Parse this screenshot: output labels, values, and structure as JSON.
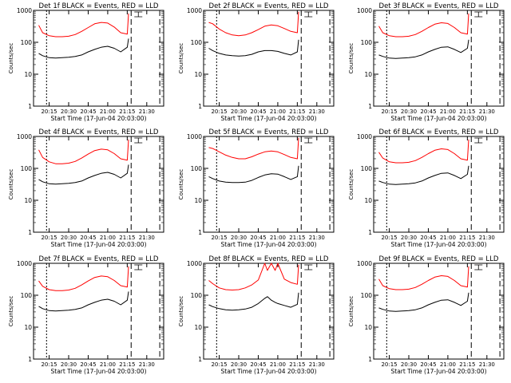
{
  "figure": {
    "ylabel": "Counts/sec",
    "xlabel": "Start Time (17-Jun-04 20:03:00)",
    "y_tick_labels": [
      "1000",
      "100",
      "10",
      "1"
    ],
    "x_tick_labels": [
      "20:15",
      "20:30",
      "20:45",
      "21:00",
      "21:15",
      "21:30"
    ],
    "colors": {
      "events": "#000000",
      "lld": "#ff0000"
    }
  },
  "chart_data": [
    {
      "type": "line",
      "title": "Det 1f BLACK = Events, RED = LLD",
      "yscale": "log",
      "ylim": [
        1,
        1000
      ],
      "xlim": [
        "20:03",
        "21:43"
      ],
      "series": [
        {
          "color": "#000000",
          "x": [
            "20:07",
            "20:10",
            "20:15",
            "20:20",
            "20:25",
            "20:30",
            "20:35",
            "20:40",
            "20:45",
            "20:50",
            "20:55",
            "21:00",
            "21:05",
            "21:10",
            "21:15",
            "21:16"
          ],
          "y": [
            45,
            38,
            33,
            32,
            33,
            34,
            36,
            40,
            50,
            60,
            70,
            75,
            65,
            50,
            70,
            130
          ]
        },
        {
          "color": "#ff0000",
          "x": [
            "20:07",
            "20:10",
            "20:15",
            "20:20",
            "20:25",
            "20:30",
            "20:35",
            "20:40",
            "20:45",
            "20:50",
            "20:55",
            "21:00",
            "21:05",
            "21:10",
            "21:15",
            "21:16"
          ],
          "y": [
            340,
            200,
            160,
            150,
            150,
            155,
            175,
            220,
            290,
            380,
            420,
            400,
            300,
            200,
            180,
            800
          ]
        }
      ]
    },
    {
      "type": "line",
      "title": "Det 2f BLACK = Events, RED = LLD",
      "yscale": "log",
      "ylim": [
        1,
        1000
      ],
      "xlim": [
        "20:03",
        "21:43"
      ],
      "series": [
        {
          "color": "#000000",
          "x": [
            "20:07",
            "20:10",
            "20:15",
            "20:20",
            "20:25",
            "20:30",
            "20:35",
            "20:40",
            "20:45",
            "20:50",
            "20:55",
            "21:00",
            "21:05",
            "21:10",
            "21:15",
            "21:16"
          ],
          "y": [
            65,
            55,
            45,
            40,
            38,
            37,
            38,
            42,
            50,
            55,
            55,
            52,
            45,
            40,
            50,
            120
          ]
        },
        {
          "color": "#ff0000",
          "x": [
            "20:07",
            "20:10",
            "20:15",
            "20:20",
            "20:25",
            "20:30",
            "20:35",
            "20:40",
            "20:45",
            "20:50",
            "20:55",
            "21:00",
            "21:05",
            "21:10",
            "21:15",
            "21:16"
          ],
          "y": [
            420,
            380,
            260,
            200,
            170,
            160,
            170,
            200,
            250,
            320,
            350,
            330,
            270,
            220,
            200,
            900
          ]
        }
      ]
    },
    {
      "type": "line",
      "title": "Det 3f BLACK = Events, RED = LLD",
      "yscale": "log",
      "ylim": [
        1,
        1000
      ],
      "xlim": [
        "20:03",
        "21:43"
      ],
      "series": [
        {
          "color": "#000000",
          "x": [
            "20:07",
            "20:10",
            "20:15",
            "20:20",
            "20:25",
            "20:30",
            "20:35",
            "20:40",
            "20:45",
            "20:50",
            "20:55",
            "21:00",
            "21:05",
            "21:10",
            "21:15",
            "21:16"
          ],
          "y": [
            40,
            36,
            32,
            31,
            32,
            33,
            35,
            40,
            50,
            60,
            70,
            72,
            60,
            48,
            65,
            120
          ]
        },
        {
          "color": "#ff0000",
          "x": [
            "20:07",
            "20:10",
            "20:15",
            "20:20",
            "20:25",
            "20:30",
            "20:35",
            "20:40",
            "20:45",
            "20:50",
            "20:55",
            "21:00",
            "21:05",
            "21:10",
            "21:15",
            "21:16"
          ],
          "y": [
            320,
            200,
            160,
            150,
            150,
            155,
            175,
            220,
            290,
            370,
            410,
            390,
            290,
            200,
            180,
            800
          ]
        }
      ]
    },
    {
      "type": "line",
      "title": "Det 4f BLACK = Events, RED = LLD",
      "yscale": "log",
      "ylim": [
        1,
        1000
      ],
      "xlim": [
        "20:03",
        "21:43"
      ],
      "series": [
        {
          "color": "#000000",
          "x": [
            "20:07",
            "20:10",
            "20:15",
            "20:20",
            "20:25",
            "20:30",
            "20:35",
            "20:40",
            "20:45",
            "20:50",
            "20:55",
            "21:00",
            "21:05",
            "21:10",
            "21:15",
            "21:16"
          ],
          "y": [
            45,
            38,
            33,
            32,
            33,
            34,
            36,
            40,
            50,
            60,
            70,
            75,
            65,
            50,
            70,
            130
          ]
        },
        {
          "color": "#ff0000",
          "x": [
            "20:07",
            "20:10",
            "20:15",
            "20:20",
            "20:25",
            "20:30",
            "20:35",
            "20:40",
            "20:45",
            "20:50",
            "20:55",
            "21:00",
            "21:05",
            "21:10",
            "21:15",
            "21:16"
          ],
          "y": [
            380,
            220,
            160,
            140,
            140,
            145,
            165,
            210,
            280,
            360,
            400,
            380,
            290,
            200,
            180,
            800
          ]
        }
      ]
    },
    {
      "type": "line",
      "title": "Det 5f BLACK = Events, RED = LLD",
      "yscale": "log",
      "ylim": [
        1,
        1000
      ],
      "xlim": [
        "20:03",
        "21:43"
      ],
      "series": [
        {
          "color": "#000000",
          "x": [
            "20:07",
            "20:10",
            "20:15",
            "20:20",
            "20:25",
            "20:30",
            "20:35",
            "20:40",
            "20:45",
            "20:50",
            "20:55",
            "21:00",
            "21:05",
            "21:10",
            "21:15",
            "21:16"
          ],
          "y": [
            55,
            48,
            40,
            37,
            36,
            36,
            37,
            42,
            52,
            62,
            68,
            66,
            55,
            45,
            55,
            120
          ]
        },
        {
          "color": "#ff0000",
          "x": [
            "20:07",
            "20:10",
            "20:15",
            "20:20",
            "20:25",
            "20:30",
            "20:35",
            "20:40",
            "20:45",
            "20:50",
            "20:55",
            "21:00",
            "21:05",
            "21:10",
            "21:15",
            "21:16"
          ],
          "y": [
            450,
            420,
            330,
            260,
            220,
            200,
            200,
            230,
            280,
            330,
            350,
            330,
            270,
            220,
            200,
            900
          ]
        }
      ]
    },
    {
      "type": "line",
      "title": "Det 6f BLACK = Events, RED = LLD",
      "yscale": "log",
      "ylim": [
        1,
        1000
      ],
      "xlim": [
        "20:03",
        "21:43"
      ],
      "series": [
        {
          "color": "#000000",
          "x": [
            "20:07",
            "20:10",
            "20:15",
            "20:20",
            "20:25",
            "20:30",
            "20:35",
            "20:40",
            "20:45",
            "20:50",
            "20:55",
            "21:00",
            "21:05",
            "21:10",
            "21:15",
            "21:16"
          ],
          "y": [
            40,
            36,
            32,
            31,
            32,
            33,
            35,
            40,
            50,
            60,
            70,
            72,
            60,
            48,
            65,
            120
          ]
        },
        {
          "color": "#ff0000",
          "x": [
            "20:07",
            "20:10",
            "20:15",
            "20:20",
            "20:25",
            "20:30",
            "20:35",
            "20:40",
            "20:45",
            "20:50",
            "20:55",
            "21:00",
            "21:05",
            "21:10",
            "21:15",
            "21:16"
          ],
          "y": [
            320,
            210,
            160,
            150,
            150,
            155,
            175,
            220,
            290,
            370,
            410,
            390,
            290,
            200,
            180,
            800
          ]
        }
      ]
    },
    {
      "type": "line",
      "title": "Det 7f BLACK = Events, RED = LLD",
      "yscale": "log",
      "ylim": [
        1,
        1000
      ],
      "xlim": [
        "20:03",
        "21:43"
      ],
      "series": [
        {
          "color": "#000000",
          "x": [
            "20:07",
            "20:10",
            "20:15",
            "20:20",
            "20:25",
            "20:30",
            "20:35",
            "20:40",
            "20:45",
            "20:50",
            "20:55",
            "21:00",
            "21:05",
            "21:10",
            "21:15",
            "21:16"
          ],
          "y": [
            45,
            38,
            33,
            32,
            33,
            34,
            36,
            40,
            50,
            60,
            70,
            75,
            65,
            50,
            70,
            130
          ]
        },
        {
          "color": "#ff0000",
          "x": [
            "20:07",
            "20:10",
            "20:15",
            "20:20",
            "20:25",
            "20:30",
            "20:35",
            "20:40",
            "20:45",
            "20:50",
            "20:55",
            "21:00",
            "21:05",
            "21:10",
            "21:15",
            "21:16"
          ],
          "y": [
            280,
            190,
            150,
            140,
            140,
            145,
            165,
            210,
            280,
            360,
            400,
            380,
            290,
            200,
            180,
            800
          ]
        }
      ]
    },
    {
      "type": "line",
      "title": "Det 8f BLACK = Events, RED = LLD",
      "yscale": "log",
      "ylim": [
        1,
        1000
      ],
      "xlim": [
        "20:03",
        "21:43"
      ],
      "series": [
        {
          "color": "#000000",
          "x": [
            "20:07",
            "20:10",
            "20:15",
            "20:20",
            "20:25",
            "20:30",
            "20:35",
            "20:40",
            "20:45",
            "20:50",
            "20:52",
            "20:55",
            "20:58",
            "21:00",
            "21:05",
            "21:10",
            "21:15",
            "21:16"
          ],
          "y": [
            50,
            44,
            38,
            35,
            34,
            35,
            37,
            42,
            55,
            80,
            90,
            70,
            60,
            55,
            48,
            42,
            52,
            120
          ]
        },
        {
          "color": "#ff0000",
          "x": [
            "20:07",
            "20:10",
            "20:15",
            "20:20",
            "20:25",
            "20:30",
            "20:35",
            "20:40",
            "20:45",
            "20:50",
            "20:52",
            "20:55",
            "20:58",
            "21:00",
            "21:05",
            "21:10",
            "21:15",
            "21:16"
          ],
          "y": [
            290,
            230,
            170,
            150,
            145,
            150,
            170,
            210,
            300,
            1000,
            600,
            1000,
            600,
            1000,
            320,
            250,
            220,
            900
          ]
        }
      ]
    },
    {
      "type": "line",
      "title": "Det 9f BLACK = Events, RED = LLD",
      "yscale": "log",
      "ylim": [
        1,
        1000
      ],
      "xlim": [
        "20:03",
        "21:43"
      ],
      "series": [
        {
          "color": "#000000",
          "x": [
            "20:07",
            "20:10",
            "20:15",
            "20:20",
            "20:25",
            "20:30",
            "20:35",
            "20:40",
            "20:45",
            "20:50",
            "20:55",
            "21:00",
            "21:05",
            "21:10",
            "21:15",
            "21:16"
          ],
          "y": [
            40,
            36,
            32,
            31,
            32,
            33,
            35,
            40,
            50,
            60,
            70,
            72,
            60,
            48,
            65,
            120
          ]
        },
        {
          "color": "#ff0000",
          "x": [
            "20:07",
            "20:10",
            "20:15",
            "20:20",
            "20:25",
            "20:30",
            "20:35",
            "20:40",
            "20:45",
            "20:50",
            "20:55",
            "21:00",
            "21:05",
            "21:10",
            "21:15",
            "21:16"
          ],
          "y": [
            320,
            200,
            160,
            150,
            150,
            155,
            175,
            220,
            290,
            370,
            410,
            390,
            290,
            200,
            180,
            800
          ]
        }
      ]
    }
  ]
}
